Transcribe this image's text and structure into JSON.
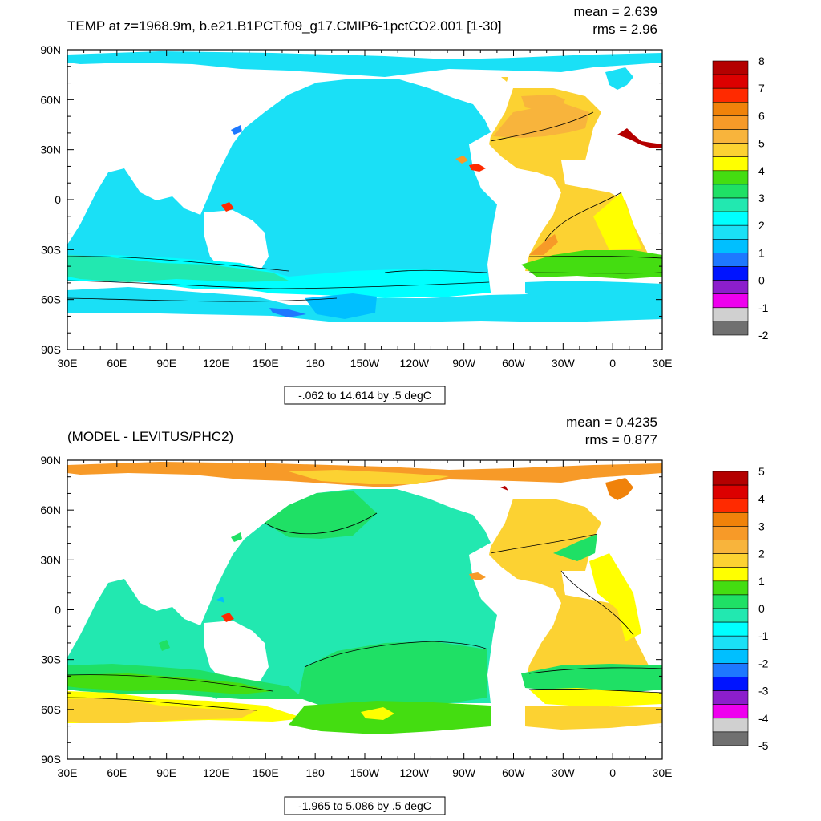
{
  "chart_data": [
    {
      "type": "heatmap",
      "title": "TEMP at z=1968.9m, b.e21.B1PCT.f09_g17.CMIP6-1pctCO2.001 [1-30]",
      "stats": [
        "mean = 2.639",
        "rms = 2.96"
      ],
      "range_label": "-.062 to 14.614 by .5 degC",
      "xticks": [
        "30E",
        "60E",
        "90E",
        "120E",
        "150E",
        "180",
        "150W",
        "120W",
        "90W",
        "60W",
        "30W",
        "0",
        "30E"
      ],
      "yticks": [
        "90N",
        "60N",
        "30N",
        "0",
        "30S",
        "60S",
        "90S"
      ],
      "xlim": [
        30,
        390
      ],
      "ylim": [
        -90,
        90
      ],
      "colorbar": {
        "labels": [
          "8",
          "7",
          "6",
          "5",
          "4",
          "3",
          "2",
          "1",
          "0",
          "-1",
          "-2"
        ],
        "colors": [
          "#b40000",
          "#dc0000",
          "#ff2a00",
          "#f0820a",
          "#f79a28",
          "#f8b43c",
          "#fcd232",
          "#ffff00",
          "#44dd11",
          "#1fe065",
          "#22e8b0",
          "#00ffff",
          "#1ae0f6",
          "#00bfff",
          "#1e78ff",
          "#0014ff",
          "#8c1ecc",
          "#ee00ee",
          "#d0d0d0",
          "#707070"
        ]
      }
    },
    {
      "type": "heatmap",
      "title": "(MODEL - LEVITUS/PHC2)",
      "stats": [
        "mean = 0.4235",
        "rms = 0.877"
      ],
      "range_label": "-1.965 to 5.086 by .5 degC",
      "xticks": [
        "30E",
        "60E",
        "90E",
        "120E",
        "150E",
        "180",
        "150W",
        "120W",
        "90W",
        "60W",
        "30W",
        "0",
        "30E"
      ],
      "yticks": [
        "90N",
        "60N",
        "30N",
        "0",
        "30S",
        "60S",
        "90S"
      ],
      "xlim": [
        30,
        390
      ],
      "ylim": [
        -90,
        90
      ],
      "colorbar": {
        "labels": [
          "5",
          "4",
          "3",
          "2",
          "1",
          "0",
          "-1",
          "-2",
          "-3",
          "-4",
          "-5"
        ],
        "colors": [
          "#b40000",
          "#dc0000",
          "#ff2a00",
          "#f0820a",
          "#f79a28",
          "#f8b43c",
          "#fcd232",
          "#ffff00",
          "#44dd11",
          "#1fe065",
          "#22e8b0",
          "#00ffff",
          "#1ae0f6",
          "#00bfff",
          "#1e78ff",
          "#0014ff",
          "#8c1ecc",
          "#ee00ee",
          "#d0d0d0",
          "#707070"
        ]
      }
    }
  ]
}
